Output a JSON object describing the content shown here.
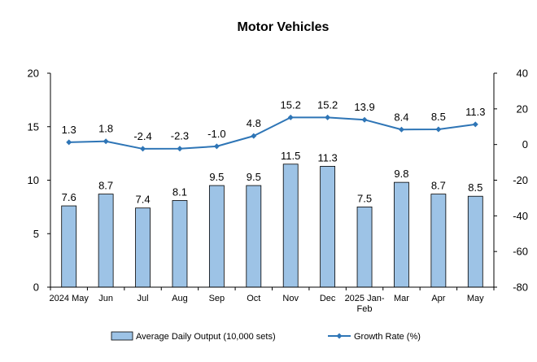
{
  "chart_data": {
    "type": "bar+line",
    "title": "Motor Vehicles",
    "categories": [
      [
        "2024 May"
      ],
      [
        "Jun"
      ],
      [
        "Jul"
      ],
      [
        "Aug"
      ],
      [
        "Sep"
      ],
      [
        "Oct"
      ],
      [
        "Nov"
      ],
      [
        "Dec"
      ],
      [
        "2025 Jan-",
        "Feb"
      ],
      [
        "Mar"
      ],
      [
        "Apr"
      ],
      [
        "May"
      ]
    ],
    "series": [
      {
        "name": "Average Daily Output (10,000 sets)",
        "kind": "bar",
        "axis": "left",
        "color": "#9DC3E6",
        "values": [
          7.6,
          8.7,
          7.4,
          8.1,
          9.5,
          9.5,
          11.5,
          11.3,
          7.5,
          9.8,
          8.7,
          8.5
        ],
        "labels": [
          "7.6",
          "8.7",
          "7.4",
          "8.1",
          "9.5",
          "9.5",
          "11.5",
          "11.3",
          "7.5",
          "9.8",
          "8.7",
          "8.5"
        ]
      },
      {
        "name": "Growth Rate (%)",
        "kind": "line",
        "axis": "right",
        "color": "#2E75B6",
        "values": [
          1.3,
          1.8,
          -2.4,
          -2.3,
          -1.0,
          4.8,
          15.2,
          15.2,
          13.9,
          8.4,
          8.5,
          11.3
        ],
        "labels": [
          "1.3",
          "1.8",
          "-2.4",
          "-2.3",
          "-1.0",
          "4.8",
          "15.2",
          "15.2",
          "13.9",
          "8.4",
          "8.5",
          "11.3"
        ]
      }
    ],
    "y_left": {
      "min": 0,
      "max": 20,
      "ticks": [
        0,
        5,
        10,
        15,
        20
      ],
      "tick_labels": [
        "0",
        "5",
        "10",
        "15",
        "20"
      ]
    },
    "y_right": {
      "min": -80,
      "max": 40,
      "ticks": [
        -80,
        -60,
        -40,
        -20,
        0,
        20,
        40
      ],
      "tick_labels": [
        "-80",
        "-60",
        "-40",
        "-20",
        "0",
        "20",
        "40"
      ]
    },
    "grid": false,
    "legend_position": "bottom"
  }
}
